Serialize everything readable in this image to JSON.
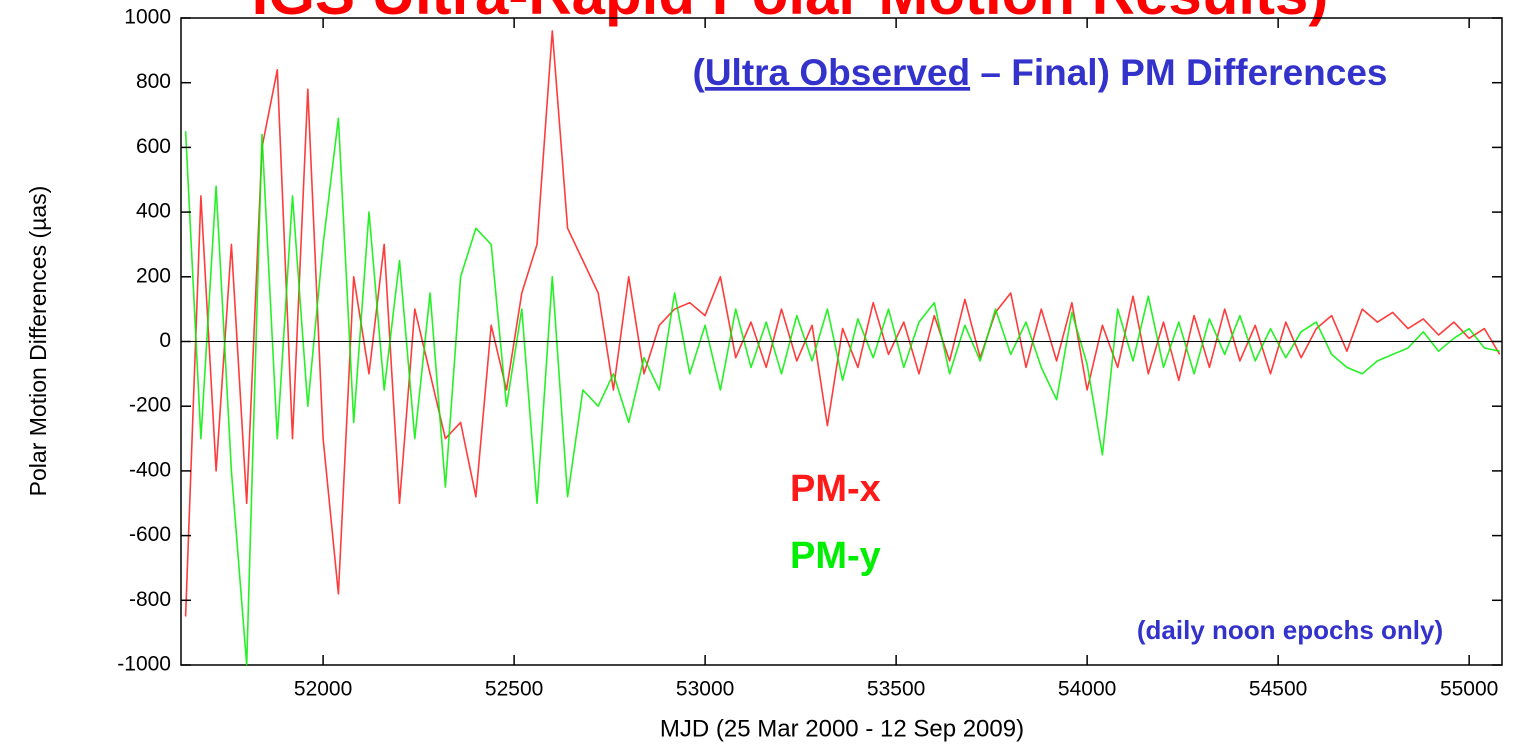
{
  "chart_data": {
    "type": "line",
    "title": "IGS Ultra-Rapid Polar Motion Results)",
    "annotation": {
      "open": "(",
      "underlined": "Ultra Observed",
      "rest": " – Final) PM Differences"
    },
    "note": "(daily noon epochs only)",
    "xlabel": "MJD (25 Mar 2000 - 12 Sep 2009)",
    "ylabel": "Polar Motion Differences (µas)",
    "xlim": [
      51628,
      55086
    ],
    "ylim": [
      -1000,
      1000
    ],
    "xticks": [
      52000,
      52500,
      53000,
      53500,
      54000,
      54500,
      55000
    ],
    "yticks": [
      -1000,
      -800,
      -600,
      -400,
      -200,
      0,
      200,
      400,
      600,
      800,
      1000
    ],
    "grid": false,
    "x": [
      51640,
      51680,
      51720,
      51760,
      51800,
      51840,
      51880,
      51920,
      51960,
      52000,
      52040,
      52080,
      52120,
      52160,
      52200,
      52240,
      52280,
      52320,
      52360,
      52400,
      52440,
      52480,
      52520,
      52560,
      52600,
      52640,
      52680,
      52720,
      52760,
      52800,
      52840,
      52880,
      52920,
      52960,
      53000,
      53040,
      53080,
      53120,
      53160,
      53200,
      53240,
      53280,
      53320,
      53360,
      53400,
      53440,
      53480,
      53520,
      53560,
      53600,
      53640,
      53680,
      53720,
      53760,
      53800,
      53840,
      53880,
      53920,
      53960,
      54000,
      54040,
      54080,
      54120,
      54160,
      54200,
      54240,
      54280,
      54320,
      54360,
      54400,
      54440,
      54480,
      54520,
      54560,
      54600,
      54640,
      54680,
      54720,
      54760,
      54800,
      54840,
      54880,
      54920,
      54960,
      55000,
      55040,
      55080
    ],
    "series": [
      {
        "name": "PM-x",
        "color": "#ff1a1a",
        "values": [
          -850,
          450,
          -400,
          300,
          -500,
          600,
          840,
          -300,
          780,
          -300,
          -780,
          200,
          -100,
          300,
          -500,
          100,
          -100,
          -300,
          -250,
          -480,
          50,
          -150,
          150,
          300,
          960,
          350,
          250,
          150,
          -150,
          200,
          -100,
          50,
          100,
          120,
          80,
          200,
          -50,
          60,
          -80,
          100,
          -60,
          50,
          -260,
          40,
          -80,
          120,
          -40,
          60,
          -100,
          80,
          -60,
          130,
          -50,
          90,
          150,
          -80,
          100,
          -60,
          120,
          -150,
          50,
          -80,
          140,
          -100,
          60,
          -120,
          80,
          -80,
          100,
          -60,
          50,
          -100,
          60,
          -50,
          40,
          80,
          -30,
          100,
          60,
          90,
          40,
          70,
          20,
          60,
          10,
          40,
          -40
        ]
      },
      {
        "name": "PM-y",
        "color": "#00ee00",
        "values": [
          650,
          -300,
          480,
          -400,
          -1000,
          640,
          -300,
          450,
          -200,
          300,
          690,
          -250,
          400,
          -150,
          250,
          -300,
          150,
          -450,
          200,
          350,
          300,
          -200,
          100,
          -500,
          200,
          -480,
          -150,
          -200,
          -100,
          -250,
          -50,
          -150,
          150,
          -100,
          50,
          -150,
          100,
          -80,
          60,
          -100,
          80,
          -60,
          100,
          -120,
          70,
          -50,
          100,
          -80,
          60,
          120,
          -100,
          50,
          -60,
          100,
          -40,
          60,
          -80,
          -180,
          90,
          -70,
          -350,
          100,
          -60,
          140,
          -80,
          60,
          -100,
          70,
          -40,
          80,
          -60,
          40,
          -50,
          30,
          60,
          -40,
          -80,
          -100,
          -60,
          -40,
          -20,
          30,
          -30,
          10,
          40,
          -20,
          -30
        ]
      }
    ]
  }
}
